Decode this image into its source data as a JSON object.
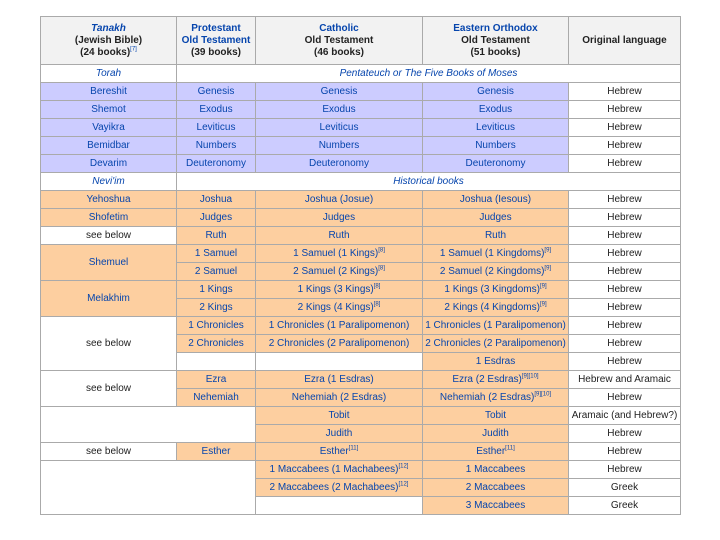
{
  "headers": {
    "tanakh": {
      "line1": "Tanakh",
      "line2": "(Jewish Bible)",
      "line3": "(24 books)",
      "ref": "[7]"
    },
    "protestant": {
      "line1": "Protestant",
      "line2": "Old Testament",
      "line3": "(39 books)"
    },
    "catholic": {
      "line1": "Catholic",
      "line2": "Old Testament",
      "line3": "(46 books)"
    },
    "orthodox": {
      "line1": "Eastern Orthodox",
      "line2": "Old Testament",
      "line3": "(51 books)"
    },
    "language": {
      "line1": "Original language"
    }
  },
  "sections": {
    "torah": "Torah",
    "pentateuch": "Pentateuch or The Five Books of Moses",
    "neviim": "Nevi'im",
    "historical": "Historical books"
  },
  "rows": {
    "bereshit": {
      "t": "Bereshit",
      "p": "Genesis",
      "c": "Genesis",
      "o": "Genesis",
      "l": "Hebrew"
    },
    "shemot": {
      "t": "Shemot",
      "p": "Exodus",
      "c": "Exodus",
      "o": "Exodus",
      "l": "Hebrew"
    },
    "vayikra": {
      "t": "Vayikra",
      "p": "Leviticus",
      "c": "Leviticus",
      "o": "Leviticus",
      "l": "Hebrew"
    },
    "bamidbar": {
      "t": "Bemidbar",
      "p": "Numbers",
      "c": "Numbers",
      "o": "Numbers",
      "l": "Hebrew"
    },
    "devarim": {
      "t": "Devarim",
      "p": "Deuteronomy",
      "c": "Deuteronomy",
      "o": "Deuteronomy",
      "l": "Hebrew"
    },
    "yehoshua": {
      "t": "Yehoshua",
      "p": "Joshua",
      "c": "Joshua (Josue)",
      "o": "Joshua (Iesous)",
      "l": "Hebrew"
    },
    "shofetim": {
      "t": "Shofetim",
      "p": "Judges",
      "c": "Judges",
      "o": "Judges",
      "l": "Hebrew"
    },
    "ruth": {
      "t": "see below",
      "p": "Ruth",
      "c": "Ruth",
      "o": "Ruth",
      "l": "Hebrew"
    },
    "samuel1": {
      "t": "Shemuel",
      "p": "1 Samuel",
      "c": "1 Samuel (1 Kings)",
      "c_ref": "[8]",
      "o": "1 Samuel (1 Kingdoms)",
      "o_ref": "[9]",
      "l": "Hebrew"
    },
    "samuel2": {
      "p": "2 Samuel",
      "c": "2 Samuel (2 Kings)",
      "c_ref": "[8]",
      "o": "2 Samuel (2 Kingdoms)",
      "o_ref": "[9]",
      "l": "Hebrew"
    },
    "kings1": {
      "t": "Melakhim",
      "p": "1 Kings",
      "c": "1 Kings (3 Kings)",
      "c_ref": "[8]",
      "o": "1 Kings (3 Kingdoms)",
      "o_ref": "[9]",
      "l": "Hebrew"
    },
    "kings2": {
      "p": "2 Kings",
      "c": "2 Kings (4 Kings)",
      "c_ref": "[8]",
      "o": "2 Kings (4 Kingdoms)",
      "o_ref": "[9]",
      "l": "Hebrew"
    },
    "chron1": {
      "t": "see below",
      "p": "1 Chronicles",
      "c": "1 Chronicles (1 Paralipomenon)",
      "o": "1 Chronicles (1 Paralipomenon)",
      "l": "Hebrew"
    },
    "chron2": {
      "p": "2 Chronicles",
      "c": "2 Chronicles (2 Paralipomenon)",
      "o": "2 Chronicles (2 Paralipomenon)",
      "l": "Hebrew"
    },
    "esdras1": {
      "o": "1 Esdras",
      "l": "Hebrew"
    },
    "ezra": {
      "t": "see below",
      "p": "Ezra",
      "c": "Ezra (1 Esdras)",
      "o": "Ezra (2 Esdras)",
      "o_ref": "[9][10]",
      "l": "Hebrew and Aramaic"
    },
    "nehemiah": {
      "p": "Nehemiah",
      "c": "Nehemiah (2 Esdras)",
      "o": "Nehemiah (2 Esdras)",
      "o_ref": "[9][10]",
      "l": "Hebrew"
    },
    "tobit": {
      "c": "Tobit",
      "o": "Tobit",
      "l": "Aramaic (and Hebrew?)"
    },
    "judith": {
      "c": "Judith",
      "o": "Judith",
      "l": "Hebrew"
    },
    "esther": {
      "t": "see below",
      "p": "Esther",
      "c": "Esther",
      "c_ref": "[11]",
      "o": "Esther",
      "o_ref": "[11]",
      "l": "Hebrew"
    },
    "macc1": {
      "c": "1 Maccabees (1 Machabees)",
      "c_ref": "[12]",
      "o": "1 Maccabees",
      "l": "Hebrew"
    },
    "macc2": {
      "c": "2 Maccabees (2 Machabees)",
      "c_ref": "[12]",
      "o": "2 Maccabees",
      "l": "Greek"
    },
    "macc3": {
      "o": "3 Maccabees",
      "l": "Greek"
    }
  },
  "colors": {
    "torah_bg": "#ccccff",
    "historical_bg": "#fdcfa0",
    "header_bg": "#f2f2f2",
    "link": "#0645ad"
  }
}
